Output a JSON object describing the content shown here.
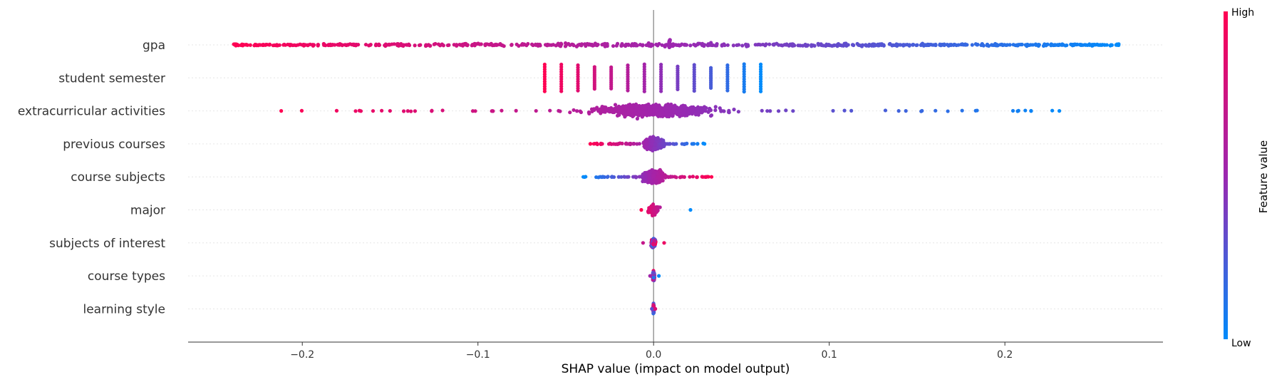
{
  "chart_data": {
    "type": "scatter",
    "subtype": "shap-beeswarm",
    "title": "",
    "xlabel": "SHAP value (impact on model output)",
    "xlim": [
      -0.265,
      0.29
    ],
    "xticks": [
      -0.2,
      -0.1,
      0.0,
      0.1,
      0.2
    ],
    "xtick_labels": [
      "−0.2",
      "−0.1",
      "0.0",
      "0.1",
      "0.2"
    ],
    "zero_line": true,
    "grid": false,
    "features": [
      {
        "name": "gpa",
        "min": -0.24,
        "max": 0.265,
        "spread": "wide-uniform",
        "high_side": "negative"
      },
      {
        "name": "student semester",
        "min": -0.062,
        "max": 0.061,
        "spread": "discrete-bars",
        "high_side": "negative"
      },
      {
        "name": "extracurricular activities",
        "min": -0.212,
        "max": 0.231,
        "spread": "dense-center",
        "high_side": "negative"
      },
      {
        "name": "previous courses",
        "min": -0.036,
        "max": 0.029,
        "spread": "dense-center",
        "high_side": "negative"
      },
      {
        "name": "course subjects",
        "min": -0.04,
        "max": 0.033,
        "spread": "dense-center",
        "high_side": "positive"
      },
      {
        "name": "major",
        "min": -0.007,
        "max": 0.021,
        "spread": "narrow",
        "high_side": "negative"
      },
      {
        "name": "subjects of interest",
        "min": -0.006,
        "max": 0.006,
        "spread": "narrow",
        "high_side": "mixed"
      },
      {
        "name": "course types",
        "min": -0.002,
        "max": 0.003,
        "spread": "narrow",
        "high_side": "mixed"
      },
      {
        "name": "learning style",
        "min": -0.001,
        "max": 0.001,
        "spread": "narrow",
        "high_side": "mixed"
      }
    ],
    "colorbar": {
      "title": "Feature value",
      "high_label": "High",
      "low_label": "Low",
      "high_color": "#ff0052",
      "mid_color": "#9c27b0",
      "low_color": "#008bfb"
    }
  }
}
